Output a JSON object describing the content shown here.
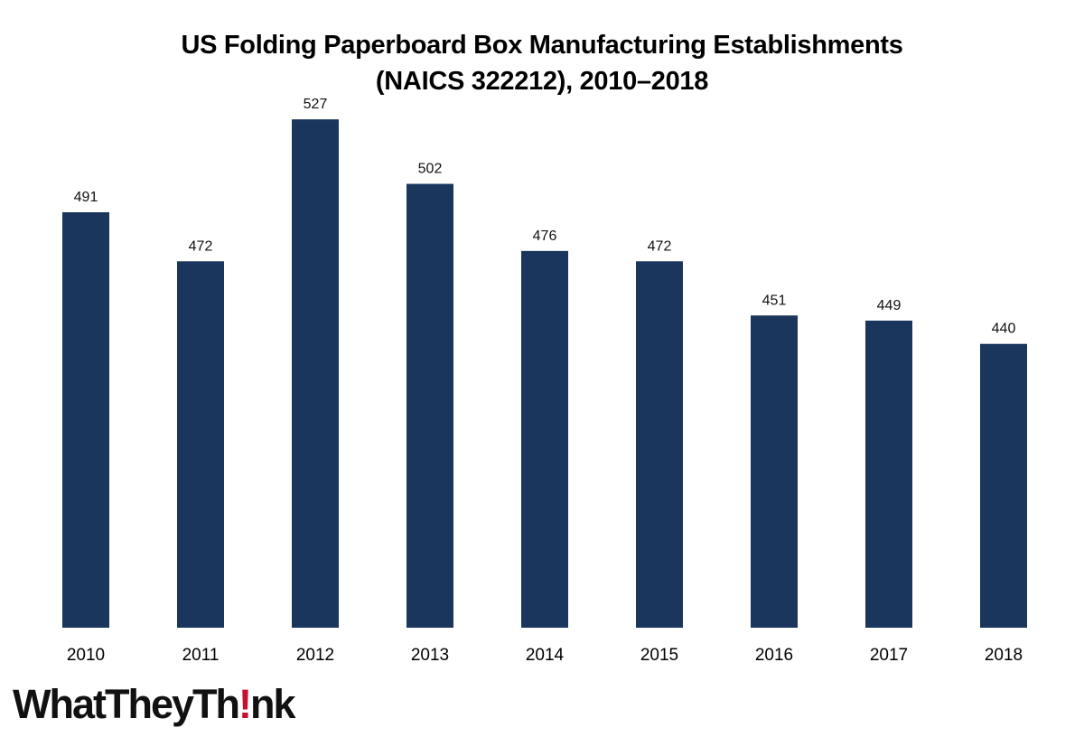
{
  "chart_data": {
    "type": "bar",
    "title": "US Folding Paperboard Box Manufacturing Establishments",
    "subtitle": "(NAICS 322212), 2010–2018",
    "categories": [
      "2010",
      "2011",
      "2012",
      "2013",
      "2014",
      "2015",
      "2016",
      "2017",
      "2018"
    ],
    "values": [
      491,
      472,
      527,
      502,
      476,
      472,
      451,
      449,
      440
    ],
    "ylim": [
      330,
      540
    ],
    "xlabel": "",
    "ylabel": "",
    "grid": false,
    "legend": "none",
    "data_labels": true,
    "bar_color": "#1b365d"
  },
  "logo": {
    "text_before": "WhatTheyTh",
    "text_mark": "!",
    "text_after": "nk",
    "mark_color": "#c8102e"
  }
}
